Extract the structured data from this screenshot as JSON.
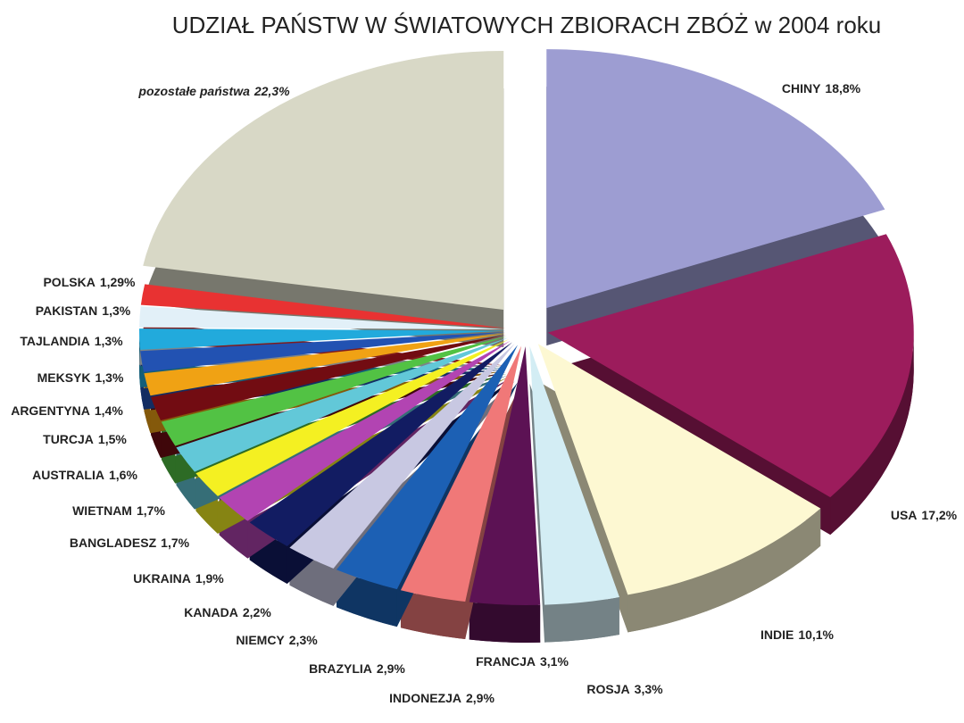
{
  "chart_data": {
    "type": "pie",
    "title": "UDZIAŁ PAŃSTW W ŚWIATOWYCH ZBIORACH ZBÓŻ w 2004 roku",
    "categories": [
      "CHINY",
      "USA",
      "INDIE",
      "ROSJA",
      "FRANCJA",
      "INDONEZJA",
      "BRAZYLIA",
      "NIEMCY",
      "KANADA",
      "UKRAINA",
      "BANGLADESZ",
      "WIETNAM",
      "AUSTRALIA",
      "TURCJA",
      "ARGENTYNA",
      "MEKSYK",
      "TAJLANDIA",
      "PAKISTAN",
      "POLSKA",
      "pozostałe państwa"
    ],
    "values": [
      18.8,
      17.2,
      10.1,
      3.3,
      3.1,
      2.9,
      2.9,
      2.3,
      2.2,
      1.9,
      1.7,
      1.7,
      1.6,
      1.5,
      1.4,
      1.3,
      1.3,
      1.3,
      1.29,
      22.3
    ],
    "value_labels": [
      "18,8%",
      "17,2%",
      "10,1%",
      "3,3%",
      "3,1%",
      "2,9%",
      "2,9%",
      "2,3%",
      "2,2%",
      "1,9%",
      "1,7%",
      "1,7%",
      "1,6%",
      "1,5%",
      "1,4%",
      "1,3%",
      "1,3%",
      "1,3%",
      "1,29%",
      "22,3%"
    ],
    "colors": [
      "#9d9dd2",
      "#9c1c5c",
      "#fdf8d2",
      "#d3edf4",
      "#5c1254",
      "#f07878",
      "#1c60b4",
      "#c8c8e2",
      "#121c62",
      "#b244b2",
      "#f4f022",
      "#62c8d8",
      "#52c244",
      "#720c12",
      "#f0a214",
      "#2252b2",
      "#22aadc",
      "#e2f0f8",
      "#e83232",
      "#d8d8c6"
    ]
  }
}
